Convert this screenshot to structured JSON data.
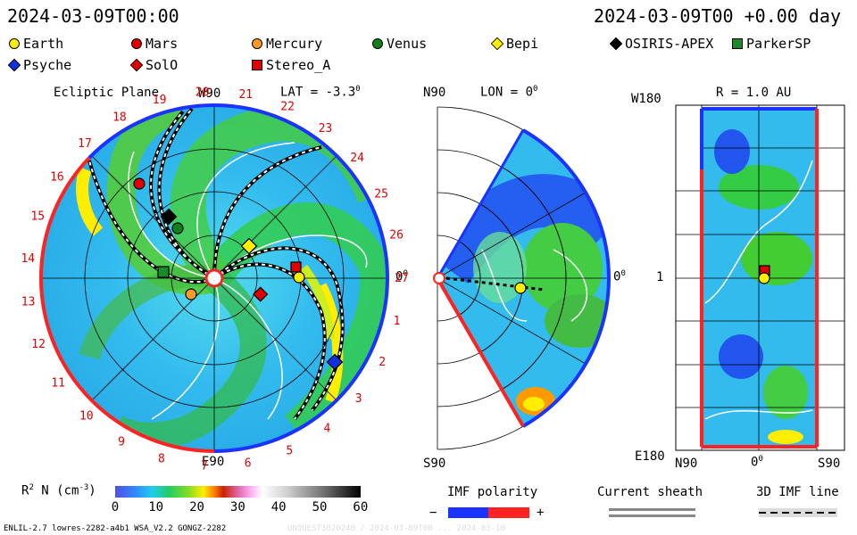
{
  "header": {
    "date_left": "2024-03-09T00:00",
    "date_right": "2024-03-09T00 +0.00 day"
  },
  "legend": [
    {
      "label": "Earth",
      "shape": "circle",
      "color": "#ffee00"
    },
    {
      "label": "Mars",
      "shape": "circle",
      "color": "#e00000"
    },
    {
      "label": "Mercury",
      "shape": "circle",
      "color": "#ff9a22"
    },
    {
      "label": "Venus",
      "shape": "circle",
      "color": "#10801a"
    },
    {
      "label": "Bepi",
      "shape": "diamond",
      "color": "#ffee00"
    },
    {
      "label": "OSIRIS-APEX",
      "shape": "diamond",
      "color": "#000000"
    },
    {
      "label": "ParkerSP",
      "shape": "square",
      "color": "#1a8a2a"
    },
    {
      "label": "Psyche",
      "shape": "diamond",
      "color": "#1030e0"
    },
    {
      "label": "SolO",
      "shape": "diamond",
      "color": "#e00000"
    },
    {
      "label": "Stereo_A",
      "shape": "square",
      "color": "#e00000"
    }
  ],
  "ecliptic": {
    "title": "Ecliptic Plane",
    "lat": "LAT = -3.3",
    "lat_deg": "0",
    "top_label": "W90",
    "bottom_label": "E90",
    "right_label": "0",
    "right_deg": "0",
    "carrington": [
      "1",
      "2",
      "3",
      "4",
      "5",
      "6",
      "7",
      "8",
      "9",
      "10",
      "11",
      "12",
      "13",
      "14",
      "15",
      "16",
      "17",
      "18",
      "19",
      "20",
      "21",
      "22",
      "23",
      "24",
      "25",
      "26",
      "27"
    ]
  },
  "meridional": {
    "title": "LON = 0",
    "title_deg": "0",
    "top_label": "N90",
    "bottom_label": "S90",
    "right_label": "0",
    "right_deg": "0"
  },
  "radial": {
    "title": "R = 1.0 AU",
    "top_label": "W180",
    "bottom_label": "E180",
    "left_label": "1",
    "x_left": "N90",
    "x_mid": "0",
    "x_mid_deg": "0",
    "x_right": "S90"
  },
  "colorbar": {
    "label": "R",
    "label_sup": "2",
    "label_rest": "N (cm",
    "label_exp": "-3",
    "label_close": ")",
    "ticks": [
      "0",
      "10",
      "20",
      "30",
      "40",
      "50",
      "60"
    ]
  },
  "imf": {
    "title": "IMF polarity",
    "minus": "−",
    "plus": "+"
  },
  "sheath": {
    "title": "Current sheath"
  },
  "imf3d": {
    "title": "3D IMF line"
  },
  "footer": {
    "left": "ENLIL-2.7 lowres-2282-a4b1 WSA_V2.2 GONGZ-2282",
    "right": "UNQUEST3020240 / 2024-03-09T00 ... 2024-03-10"
  },
  "chart_data": {
    "type": "heatmap",
    "title": "Ecliptic Plane / LON = 0 / R = 1.0 AU",
    "colorbar_range": [
      0,
      60
    ],
    "colorbar_units": "R^2 N (cm^-3)",
    "bodies_ecliptic": [
      "Earth",
      "Mars",
      "Mercury",
      "Venus",
      "Bepi",
      "OSIRIS-APEX",
      "ParkerSP",
      "Psyche",
      "SolO",
      "Stereo_A"
    ]
  }
}
